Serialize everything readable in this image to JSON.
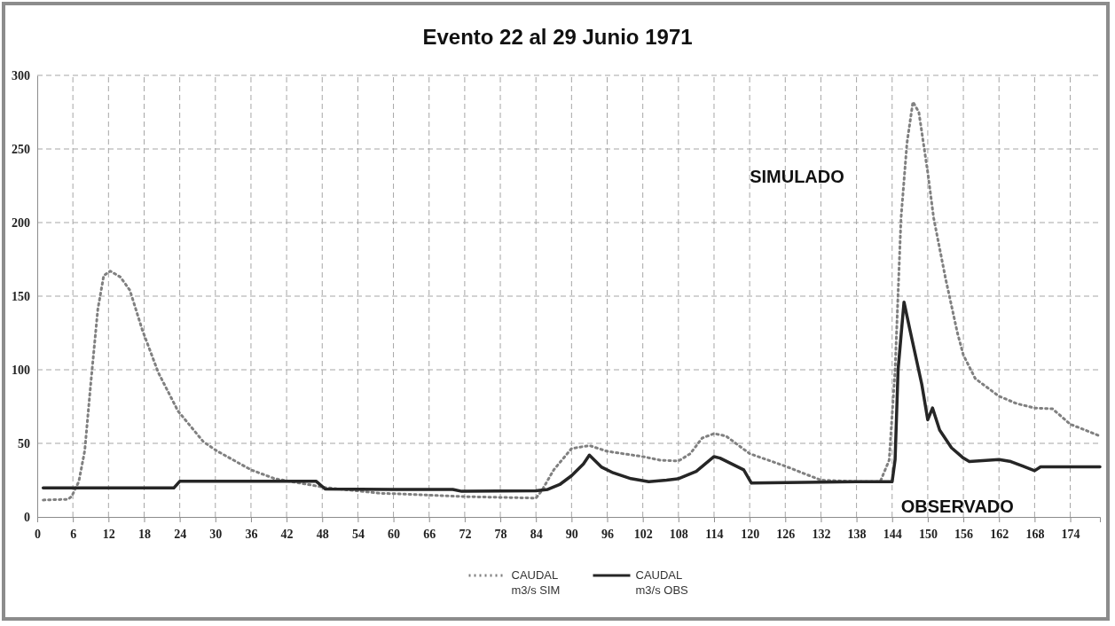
{
  "chart_data": {
    "type": "line",
    "title": "Evento 22 al 29 Junio 1971",
    "xlim": [
      0,
      179
    ],
    "xticks": [
      0,
      6,
      12,
      18,
      24,
      30,
      36,
      42,
      48,
      54,
      60,
      66,
      72,
      78,
      84,
      90,
      96,
      102,
      108,
      114,
      120,
      126,
      132,
      138,
      144,
      150,
      156,
      162,
      168,
      174
    ],
    "ylim": [
      0,
      300
    ],
    "yticks": [
      0,
      50,
      100,
      150,
      200,
      250,
      300
    ],
    "grid": true,
    "legend": "bottom",
    "annotations": [
      "SIMULADO",
      "OBSERVADO"
    ],
    "series": [
      {
        "name": "CAUDAL m3/s SIM",
        "color": "#808080",
        "line_style": "dotted",
        "x": [
          1,
          5.2,
          5.8,
          7,
          8,
          9,
          10.2,
          11.2,
          12.3,
          14,
          15.6,
          17.7,
          20.4,
          23.7,
          28,
          30.2,
          36,
          40,
          48.5,
          58,
          60,
          72,
          84,
          85,
          87,
          90,
          93,
          96,
          102,
          105,
          108,
          110,
          112,
          114,
          116,
          120,
          126,
          132,
          138,
          142,
          143.5,
          144.5,
          145.5,
          146.5,
          147.5,
          148.5,
          150,
          151,
          153,
          155,
          156,
          158,
          162,
          165,
          168,
          171,
          174,
          179
        ],
        "values": [
          11.5,
          12,
          14,
          24,
          45,
          90,
          141,
          164,
          167,
          163,
          154,
          127,
          98,
          72,
          51,
          45,
          32,
          26,
          20,
          16,
          15.8,
          13.8,
          12.8,
          18,
          32,
          46.5,
          48.5,
          44.6,
          41,
          38.5,
          38,
          43,
          53.6,
          56.6,
          55,
          43,
          34.5,
          25,
          24,
          24,
          38.6,
          100,
          203,
          254,
          282,
          275,
          234,
          203,
          162,
          125,
          110,
          94,
          82,
          77,
          74,
          73.5,
          63,
          55
        ]
      },
      {
        "name": "CAUDAL m3/s OBS",
        "color": "#262626",
        "line_style": "solid",
        "x": [
          1,
          23,
          24,
          47,
          48.5,
          60,
          70,
          71.5,
          84,
          86,
          88,
          90,
          92,
          93,
          95,
          97,
          100,
          103,
          106,
          108,
          111,
          114,
          115,
          119,
          120.3,
          138,
          144,
          144.5,
          145,
          146,
          147,
          149,
          150,
          150.8,
          152,
          154,
          156,
          157,
          162,
          164,
          166,
          168,
          169,
          179
        ],
        "values": [
          19.7,
          19.7,
          24.2,
          24.2,
          19,
          18.7,
          18.7,
          17.4,
          17.8,
          18.7,
          22,
          28,
          36,
          42,
          34,
          30,
          26,
          24,
          25,
          26,
          31,
          41,
          40,
          32,
          23,
          24,
          24,
          39,
          100,
          146,
          127,
          90,
          66,
          74,
          59,
          47,
          40,
          37.6,
          39,
          37.6,
          34.5,
          31.4,
          34,
          34
        ]
      }
    ]
  }
}
